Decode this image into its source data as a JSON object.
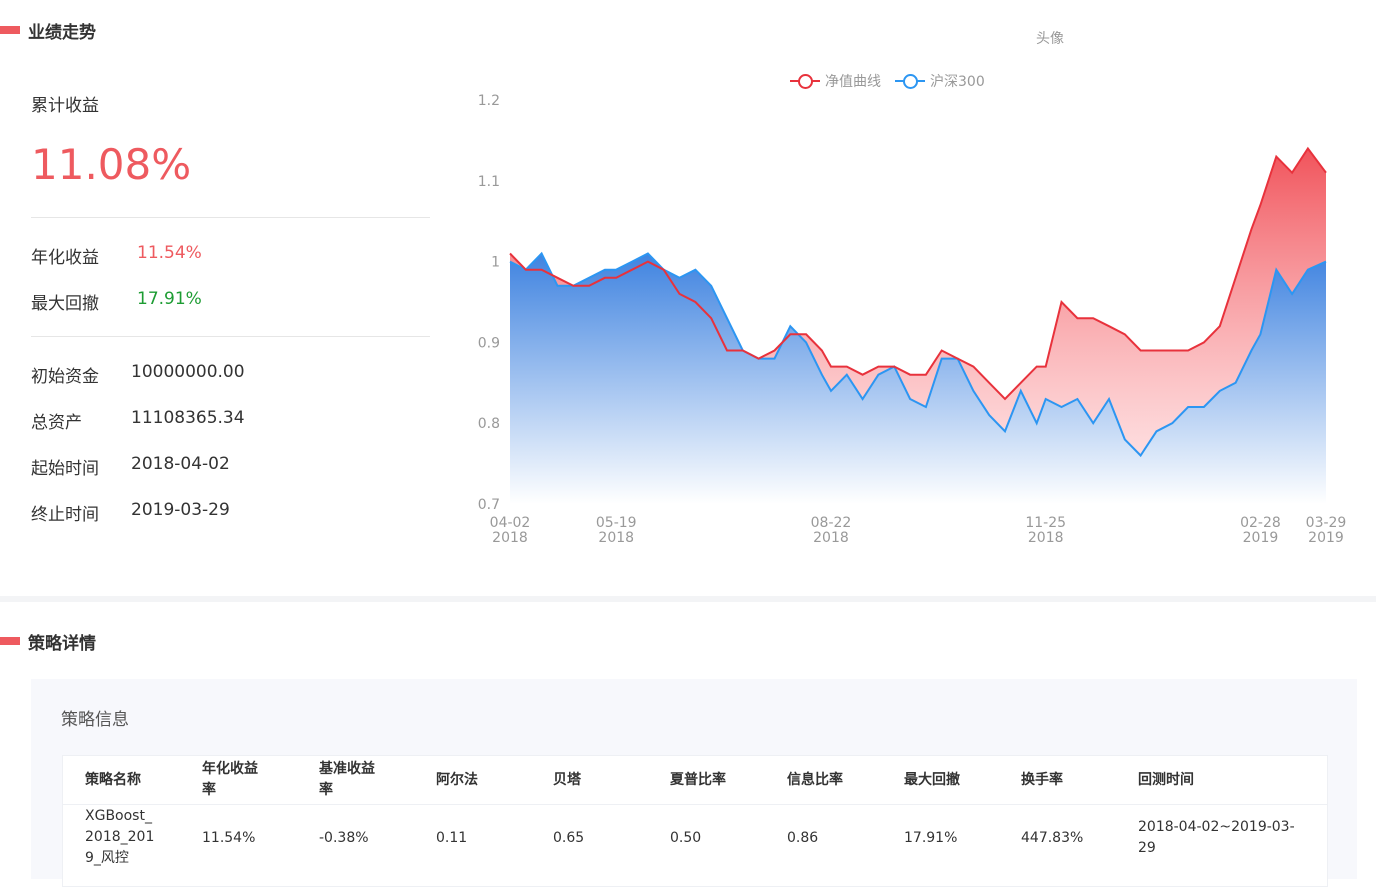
{
  "performance": {
    "section_title": "业绩走势",
    "cumulative_label": "累计收益",
    "cumulative_value": "11.08%",
    "annual_label": "年化收益",
    "annual_value": "11.54%",
    "drawdown_label": "最大回撤",
    "drawdown_value": "17.91%",
    "initial_capital_label": "初始资金",
    "initial_capital_value": "10000000.00",
    "total_assets_label": "总资产",
    "total_assets_value": "11108365.34",
    "start_label": "起始时间",
    "start_value": "2018-04-02",
    "end_label": "终止时间",
    "end_value": "2019-03-29",
    "avatar_text": "头像"
  },
  "chart_data": {
    "type": "area",
    "ylim": [
      0.7,
      1.2
    ],
    "y_ticks": [
      "1.2",
      "1.1",
      "1",
      "0.9",
      "0.8",
      "0.7"
    ],
    "x_ticks": [
      {
        "x": "2018-04-02",
        "label1": "04-02",
        "label2": "2018"
      },
      {
        "x": "2018-05-19",
        "label1": "05-19",
        "label2": "2018"
      },
      {
        "x": "2018-08-22",
        "label1": "08-22",
        "label2": "2018"
      },
      {
        "x": "2018-11-25",
        "label1": "11-25",
        "label2": "2018"
      },
      {
        "x": "2019-02-28",
        "label1": "02-28",
        "label2": "2019"
      },
      {
        "x": "2019-03-29",
        "label1": "03-29",
        "label2": "2019"
      }
    ],
    "legend_position": "top-center",
    "series": [
      {
        "name": "净值曲线",
        "color": "#e8323c",
        "points": [
          [
            "2018-04-02",
            1.01
          ],
          [
            "2018-04-09",
            0.99
          ],
          [
            "2018-04-16",
            0.99
          ],
          [
            "2018-04-23",
            0.98
          ],
          [
            "2018-04-30",
            0.97
          ],
          [
            "2018-05-07",
            0.97
          ],
          [
            "2018-05-14",
            0.98
          ],
          [
            "2018-05-19",
            0.98
          ],
          [
            "2018-05-26",
            0.99
          ],
          [
            "2018-06-02",
            1.0
          ],
          [
            "2018-06-09",
            0.99
          ],
          [
            "2018-06-16",
            0.96
          ],
          [
            "2018-06-23",
            0.95
          ],
          [
            "2018-06-30",
            0.93
          ],
          [
            "2018-07-07",
            0.89
          ],
          [
            "2018-07-14",
            0.89
          ],
          [
            "2018-07-21",
            0.88
          ],
          [
            "2018-07-28",
            0.89
          ],
          [
            "2018-08-04",
            0.91
          ],
          [
            "2018-08-11",
            0.91
          ],
          [
            "2018-08-18",
            0.89
          ],
          [
            "2018-08-22",
            0.87
          ],
          [
            "2018-08-29",
            0.87
          ],
          [
            "2018-09-05",
            0.86
          ],
          [
            "2018-09-12",
            0.87
          ],
          [
            "2018-09-19",
            0.87
          ],
          [
            "2018-09-26",
            0.86
          ],
          [
            "2018-10-03",
            0.86
          ],
          [
            "2018-10-10",
            0.89
          ],
          [
            "2018-10-17",
            0.88
          ],
          [
            "2018-10-24",
            0.87
          ],
          [
            "2018-10-31",
            0.85
          ],
          [
            "2018-11-07",
            0.83
          ],
          [
            "2018-11-14",
            0.85
          ],
          [
            "2018-11-21",
            0.87
          ],
          [
            "2018-11-25",
            0.87
          ],
          [
            "2018-12-02",
            0.95
          ],
          [
            "2018-12-09",
            0.93
          ],
          [
            "2018-12-16",
            0.93
          ],
          [
            "2018-12-23",
            0.92
          ],
          [
            "2018-12-30",
            0.91
          ],
          [
            "2019-01-06",
            0.89
          ],
          [
            "2019-01-13",
            0.89
          ],
          [
            "2019-01-20",
            0.89
          ],
          [
            "2019-01-27",
            0.89
          ],
          [
            "2019-02-03",
            0.9
          ],
          [
            "2019-02-10",
            0.92
          ],
          [
            "2019-02-17",
            0.98
          ],
          [
            "2019-02-24",
            1.04
          ],
          [
            "2019-02-28",
            1.07
          ],
          [
            "2019-03-07",
            1.13
          ],
          [
            "2019-03-14",
            1.11
          ],
          [
            "2019-03-21",
            1.14
          ],
          [
            "2019-03-29",
            1.11
          ]
        ]
      },
      {
        "name": "沪深300",
        "color": "#2c96f2",
        "points": [
          [
            "2018-04-02",
            1.0
          ],
          [
            "2018-04-09",
            0.99
          ],
          [
            "2018-04-16",
            1.01
          ],
          [
            "2018-04-23",
            0.97
          ],
          [
            "2018-04-30",
            0.97
          ],
          [
            "2018-05-07",
            0.98
          ],
          [
            "2018-05-14",
            0.99
          ],
          [
            "2018-05-19",
            0.99
          ],
          [
            "2018-05-26",
            1.0
          ],
          [
            "2018-06-02",
            1.01
          ],
          [
            "2018-06-09",
            0.99
          ],
          [
            "2018-06-16",
            0.98
          ],
          [
            "2018-06-23",
            0.99
          ],
          [
            "2018-06-30",
            0.97
          ],
          [
            "2018-07-07",
            0.93
          ],
          [
            "2018-07-14",
            0.89
          ],
          [
            "2018-07-21",
            0.88
          ],
          [
            "2018-07-28",
            0.88
          ],
          [
            "2018-08-04",
            0.92
          ],
          [
            "2018-08-11",
            0.9
          ],
          [
            "2018-08-18",
            0.86
          ],
          [
            "2018-08-22",
            0.84
          ],
          [
            "2018-08-29",
            0.86
          ],
          [
            "2018-09-05",
            0.83
          ],
          [
            "2018-09-12",
            0.86
          ],
          [
            "2018-09-19",
            0.87
          ],
          [
            "2018-09-26",
            0.83
          ],
          [
            "2018-10-03",
            0.82
          ],
          [
            "2018-10-10",
            0.88
          ],
          [
            "2018-10-17",
            0.88
          ],
          [
            "2018-10-24",
            0.84
          ],
          [
            "2018-10-31",
            0.81
          ],
          [
            "2018-11-07",
            0.79
          ],
          [
            "2018-11-14",
            0.84
          ],
          [
            "2018-11-21",
            0.8
          ],
          [
            "2018-11-25",
            0.83
          ],
          [
            "2018-12-02",
            0.82
          ],
          [
            "2018-12-09",
            0.83
          ],
          [
            "2018-12-16",
            0.8
          ],
          [
            "2018-12-23",
            0.83
          ],
          [
            "2018-12-30",
            0.78
          ],
          [
            "2019-01-06",
            0.76
          ],
          [
            "2019-01-13",
            0.79
          ],
          [
            "2019-01-20",
            0.8
          ],
          [
            "2019-01-27",
            0.82
          ],
          [
            "2019-02-03",
            0.82
          ],
          [
            "2019-02-10",
            0.84
          ],
          [
            "2019-02-17",
            0.85
          ],
          [
            "2019-02-24",
            0.89
          ],
          [
            "2019-02-28",
            0.91
          ],
          [
            "2019-03-07",
            0.99
          ],
          [
            "2019-03-14",
            0.96
          ],
          [
            "2019-03-21",
            0.99
          ],
          [
            "2019-03-29",
            1.0
          ]
        ]
      }
    ]
  },
  "details": {
    "section_title": "策略详情",
    "panel_title": "策略信息",
    "headers": [
      [
        "策略名称"
      ],
      [
        "年化收益",
        "率"
      ],
      [
        "基准收益",
        "率"
      ],
      [
        "阿尔法"
      ],
      [
        "贝塔"
      ],
      [
        "夏普比率"
      ],
      [
        "信息比率"
      ],
      [
        "最大回撤"
      ],
      [
        "换手率"
      ],
      [
        "回测时间"
      ]
    ],
    "row": [
      [
        "XGBoost_",
        "2018_201",
        "9_风控"
      ],
      [
        "11.54%"
      ],
      [
        "-0.38%"
      ],
      [
        "0.11"
      ],
      [
        "0.65"
      ],
      [
        "0.50"
      ],
      [
        "0.86"
      ],
      [
        "17.91%"
      ],
      [
        "447.83%"
      ],
      [
        "2018-04-02~2019-03-",
        "29"
      ]
    ]
  }
}
